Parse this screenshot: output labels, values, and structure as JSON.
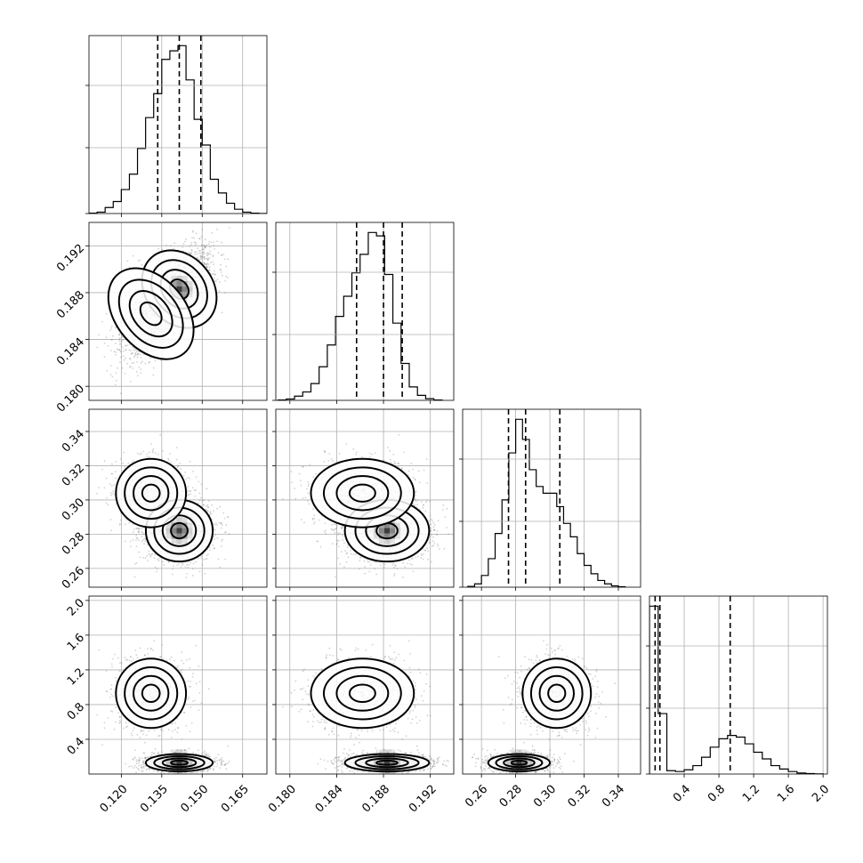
{
  "chart_data": {
    "type": "corner",
    "title": "",
    "parameters": [
      {
        "ticks": [
          0.12,
          0.135,
          0.15,
          0.165
        ],
        "tick_labels": [
          "0.120",
          "0.135",
          "0.150",
          "0.165"
        ],
        "range": [
          0.108,
          0.174
        ],
        "quantiles": [
          0.1335,
          0.1415,
          0.1495
        ],
        "hist_bins": [
          0.108,
          0.111,
          0.114,
          0.117,
          0.12,
          0.123,
          0.126,
          0.129,
          0.132,
          0.135,
          0.138,
          0.141,
          0.144,
          0.147,
          0.15,
          0.153,
          0.156,
          0.159,
          0.162,
          0.165,
          0.168,
          0.171,
          0.174
        ],
        "hist_counts": [
          0.2,
          0.8,
          3.5,
          7,
          14,
          23,
          38,
          56,
          70,
          90,
          95,
          98,
          78,
          55,
          40,
          20,
          12,
          6,
          2.5,
          0.8,
          0.2,
          0
        ]
      },
      {
        "ticks": [
          0.18,
          0.184,
          0.188,
          0.192
        ],
        "tick_labels": [
          "0.180",
          "0.184",
          "0.188",
          "0.192"
        ],
        "range": [
          0.1788,
          0.194
        ],
        "quantiles": [
          0.1857,
          0.188,
          0.1896
        ],
        "hist_bins": [
          0.179,
          0.1797,
          0.1804,
          0.1811,
          0.1818,
          0.1825,
          0.1832,
          0.1839,
          0.1846,
          0.1853,
          0.186,
          0.1867,
          0.1874,
          0.1881,
          0.1888,
          0.1895,
          0.1902,
          0.1909,
          0.1916,
          0.1923,
          0.193
        ],
        "hist_counts": [
          0.2,
          0.8,
          2.5,
          5,
          10,
          20,
          33,
          50,
          62,
          76,
          87,
          100,
          98,
          75,
          46,
          22,
          8,
          3,
          1,
          0.2
        ]
      },
      {
        "ticks": [
          0.26,
          0.28,
          0.3,
          0.32,
          0.34
        ],
        "tick_labels": [
          "0.26",
          "0.28",
          "0.30",
          "0.32",
          "0.34"
        ],
        "range": [
          0.249,
          0.353
        ],
        "quantiles": [
          0.2758,
          0.2858,
          0.3058
        ],
        "hist_bins": [
          0.252,
          0.256,
          0.26,
          0.264,
          0.268,
          0.272,
          0.276,
          0.28,
          0.284,
          0.288,
          0.292,
          0.296,
          0.3,
          0.304,
          0.308,
          0.312,
          0.316,
          0.32,
          0.324,
          0.328,
          0.332,
          0.336,
          0.34,
          0.344
        ],
        "hist_counts": [
          0.5,
          2,
          7,
          17,
          32,
          52,
          80,
          100,
          88,
          70,
          60,
          56,
          56,
          48,
          38,
          30,
          20,
          13,
          8,
          4,
          2,
          0.8,
          0.3
        ]
      },
      {
        "ticks": [
          0.4,
          0.8,
          1.2,
          1.6,
          2.0
        ],
        "tick_labels": [
          "0.4",
          "0.8",
          "1.2",
          "1.6",
          "2.0"
        ],
        "range": [
          0.0,
          2.05
        ],
        "quantiles": [
          0.065,
          0.12,
          0.93
        ],
        "hist_bins": [
          0.0,
          0.1,
          0.2,
          0.3,
          0.4,
          0.5,
          0.6,
          0.7,
          0.8,
          0.9,
          1.0,
          1.1,
          1.2,
          1.3,
          1.4,
          1.5,
          1.6,
          1.7,
          1.8,
          1.9,
          2.0
        ],
        "hist_counts": [
          100,
          36,
          2,
          1.5,
          2.5,
          5,
          10,
          16,
          21,
          23,
          22,
          18,
          13,
          9,
          5,
          3,
          1.5,
          0.6,
          0.3,
          0.1
        ]
      }
    ],
    "grid": true,
    "colors": {
      "points": "#7f7f7f",
      "density": "#000000",
      "lines": "#000000"
    }
  }
}
